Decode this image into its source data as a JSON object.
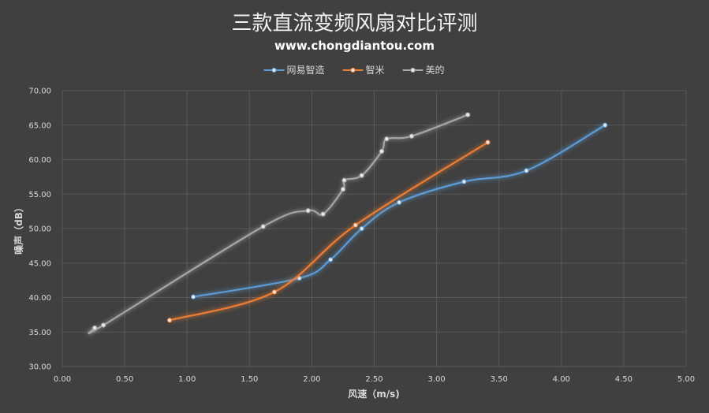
{
  "chart_data": {
    "type": "line",
    "title": "三款直流变频风扇对比评测",
    "subtitle": "www.chongdiantou.com",
    "xlabel": "风速（m/s)",
    "ylabel": "噪声（dB）",
    "xlim": [
      0,
      5
    ],
    "ylim": [
      30,
      70
    ],
    "xticks": [
      "0.00",
      "0.50",
      "1.00",
      "1.50",
      "2.00",
      "2.50",
      "3.00",
      "3.50",
      "4.00",
      "4.50",
      "5.00"
    ],
    "yticks": [
      "30.00",
      "35.00",
      "40.00",
      "45.00",
      "50.00",
      "55.00",
      "60.00",
      "65.00",
      "70.00"
    ],
    "grid": true,
    "legend_position": "top-center",
    "series": [
      {
        "name": "网易智造",
        "color": "#5b9bd5",
        "x": [
          1.05,
          1.9,
          2.15,
          2.4,
          2.7,
          3.22,
          3.72,
          4.35
        ],
        "y": [
          40.1,
          42.8,
          45.5,
          50.0,
          53.8,
          56.8,
          58.4,
          65.0
        ]
      },
      {
        "name": "智米",
        "color": "#ed7d31",
        "x": [
          0.86,
          1.7,
          2.35,
          3.41
        ],
        "y": [
          36.7,
          40.8,
          50.5,
          62.5
        ]
      },
      {
        "name": "美的",
        "color": "#a5a5a5",
        "x": [
          0.26,
          0.33,
          1.61,
          1.97,
          2.09,
          2.25,
          2.26,
          2.4,
          2.56,
          2.6,
          2.8,
          3.25
        ],
        "y": [
          35.6,
          36.0,
          50.3,
          52.6,
          52.1,
          55.7,
          57.0,
          57.7,
          61.2,
          63.0,
          63.4,
          66.5
        ]
      }
    ]
  }
}
